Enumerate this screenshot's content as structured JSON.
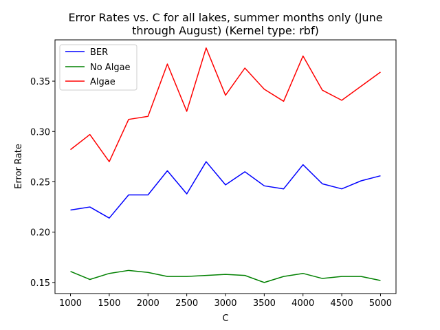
{
  "chart_data": {
    "type": "line",
    "title_lines": [
      "Error Rates vs. C for all lakes, summer months only (June",
      "through August) (Kernel type: rbf)"
    ],
    "xlabel": "C",
    "ylabel": "Error Rate",
    "x": [
      1000,
      1250,
      1500,
      1750,
      2000,
      2250,
      2500,
      2750,
      3000,
      3250,
      3500,
      3750,
      4000,
      4250,
      4500,
      4750,
      5000
    ],
    "xlim": [
      800,
      5200
    ],
    "ylim": [
      0.139,
      0.391
    ],
    "xticks": [
      1000,
      1500,
      2000,
      2500,
      3000,
      3500,
      4000,
      4500,
      5000
    ],
    "xtick_labels": [
      "1000",
      "1500",
      "2000",
      "2500",
      "3000",
      "3500",
      "4000",
      "4500",
      "5000"
    ],
    "yticks": [
      0.15,
      0.2,
      0.25,
      0.3,
      0.35
    ],
    "ytick_labels": [
      "0.15",
      "0.20",
      "0.25",
      "0.30",
      "0.35"
    ],
    "grid": false,
    "legend_position": "top-left",
    "series": [
      {
        "name": "BER",
        "color": "#0000ff",
        "values": [
          0.222,
          0.225,
          0.214,
          0.237,
          0.237,
          0.261,
          0.238,
          0.27,
          0.247,
          0.26,
          0.246,
          0.243,
          0.267,
          0.248,
          0.243,
          0.251,
          0.256
        ]
      },
      {
        "name": "No Algae",
        "color": "#008000",
        "values": [
          0.161,
          0.153,
          0.159,
          0.162,
          0.16,
          0.156,
          0.156,
          0.157,
          0.158,
          0.157,
          0.15,
          0.156,
          0.159,
          0.154,
          0.156,
          0.156,
          0.152
        ]
      },
      {
        "name": "Algae",
        "color": "#ff0000",
        "values": [
          0.282,
          0.297,
          0.27,
          0.312,
          0.315,
          0.367,
          0.32,
          0.383,
          0.336,
          0.363,
          0.342,
          0.33,
          0.375,
          0.341,
          0.331,
          0.345,
          0.359
        ]
      }
    ]
  }
}
